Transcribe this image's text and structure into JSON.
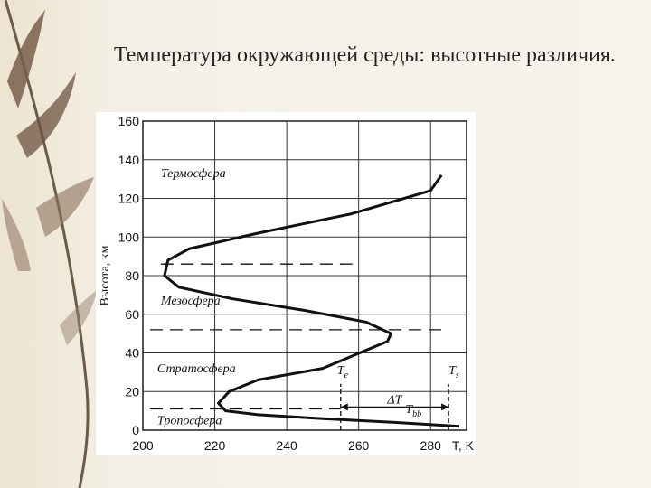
{
  "slide": {
    "title": "Температура окружающей среды: высотные различия."
  },
  "decor": {
    "icon": "willow-branch-icon"
  },
  "colors": {
    "background": "#f4f0e6",
    "ink": "#111111",
    "grid": "#222222"
  },
  "chart_data": {
    "type": "line",
    "title": "",
    "xlabel": "T, K",
    "ylabel": "Высота, км",
    "xlim": [
      200,
      290
    ],
    "ylim": [
      0,
      160
    ],
    "xticks": [
      200,
      220,
      240,
      260,
      280
    ],
    "yticks": [
      0,
      20,
      40,
      60,
      80,
      100,
      120,
      140,
      160
    ],
    "grid": true,
    "series": [
      {
        "x": [
          288,
          270,
          250,
          232,
          223,
          221,
          224,
          232,
          250,
          268,
          269,
          262,
          245,
          225,
          210,
          206,
          207,
          213,
          232,
          258,
          280,
          283
        ],
        "y": [
          2,
          4,
          6,
          8,
          10,
          14,
          20,
          26,
          32,
          46,
          50,
          56,
          62,
          68,
          74,
          80,
          88,
          94,
          102,
          112,
          124,
          132
        ]
      }
    ],
    "reference_lines": [
      {
        "y": 86,
        "x_range": [
          205,
          260
        ]
      },
      {
        "y": 52,
        "x_range": [
          202,
          283
        ]
      },
      {
        "y": 11,
        "x_range": [
          202,
          255
        ]
      }
    ],
    "vertical_lines": [
      {
        "x": 255,
        "y_range": [
          0,
          24
        ]
      },
      {
        "x": 285,
        "y_range": [
          0,
          24
        ]
      }
    ],
    "arrow_label": "ΔT",
    "annotations": [
      {
        "label": "Te",
        "main": "T",
        "sub": "e",
        "x": 254,
        "y": 29
      },
      {
        "label": "Ts",
        "main": "T",
        "sub": "s",
        "x": 285,
        "y": 29
      },
      {
        "label": "Tbb",
        "main": "T",
        "sub": "bb",
        "x": 273,
        "y": 9
      }
    ],
    "layer_labels": [
      {
        "text": "Термосфера",
        "x": 205,
        "y": 131
      },
      {
        "text": "Мезосфера",
        "x": 205,
        "y": 65
      },
      {
        "text": "Стратосфера",
        "x": 204,
        "y": 30
      },
      {
        "text": "Тропосфера",
        "x": 204,
        "y": 3
      }
    ]
  }
}
